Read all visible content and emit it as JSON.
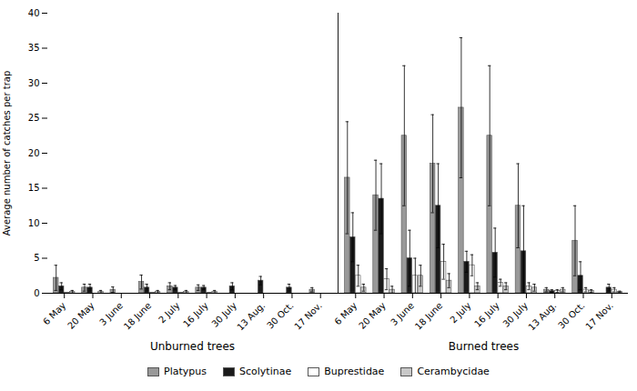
{
  "chart_data": {
    "type": "bar",
    "ylabel": "Average number of catches per trap",
    "ylim": [
      0,
      40
    ],
    "yticks": [
      0,
      5,
      10,
      15,
      20,
      25,
      30,
      35,
      40
    ],
    "sections": [
      {
        "label": "Unburned trees",
        "categories": [
          "6 May",
          "20 May",
          "3 June",
          "18 June",
          "2 July",
          "16 July",
          "30 July",
          "13 Aug.",
          "30 Oct.",
          "17 Nov."
        ],
        "series": [
          {
            "name": "Platypus",
            "color": "#999999",
            "values": [
              2.2,
              0.8,
              0.5,
              1.6,
              1.0,
              0.8,
              0.0,
              0.0,
              0.0,
              0.5
            ],
            "errors": [
              1.8,
              0.5,
              0.4,
              1.0,
              0.5,
              0.4,
              0.0,
              0.0,
              0.0,
              0.3
            ]
          },
          {
            "name": "Scolytinae",
            "color": "#1a1a1a",
            "values": [
              1.0,
              0.8,
              0.0,
              0.8,
              0.8,
              0.8,
              1.0,
              1.8,
              0.8,
              0.0
            ],
            "errors": [
              0.5,
              0.5,
              0.0,
              0.5,
              0.3,
              0.3,
              0.5,
              0.6,
              0.5,
              0.0
            ]
          },
          {
            "name": "Buprestidae",
            "color": "#ffffff",
            "values": [
              0.1,
              0.0,
              0.0,
              0.1,
              0.1,
              0.1,
              0.0,
              0.0,
              0.0,
              0.0
            ],
            "errors": [
              0.0,
              0.0,
              0.0,
              0.0,
              0.0,
              0.0,
              0.0,
              0.0,
              0.0,
              0.0
            ]
          },
          {
            "name": "Cerambycidae",
            "color": "#c8c8c8",
            "values": [
              0.2,
              0.2,
              0.0,
              0.2,
              0.2,
              0.2,
              0.0,
              0.0,
              0.0,
              0.0
            ],
            "errors": [
              0.2,
              0.2,
              0.0,
              0.2,
              0.2,
              0.2,
              0.0,
              0.0,
              0.0,
              0.0
            ]
          }
        ]
      },
      {
        "label": "Burned trees",
        "categories": [
          "6 May",
          "20 May",
          "3 June",
          "18 June",
          "2 July",
          "16 July",
          "30 July",
          "13 Aug.",
          "30 Oct.",
          "17 Nov."
        ],
        "series": [
          {
            "name": "Platypus",
            "color": "#999999",
            "values": [
              16.5,
              14.0,
              22.5,
              18.5,
              26.5,
              22.5,
              12.5,
              0.5,
              7.5,
              0.0
            ],
            "errors": [
              8.0,
              5.0,
              10.0,
              7.0,
              10.0,
              10.0,
              6.0,
              0.3,
              5.0,
              0.0
            ]
          },
          {
            "name": "Scolytinae",
            "color": "#1a1a1a",
            "values": [
              8.0,
              13.5,
              5.0,
              12.5,
              4.5,
              5.8,
              6.0,
              0.3,
              2.5,
              0.8
            ],
            "errors": [
              3.5,
              5.0,
              4.0,
              6.0,
              1.5,
              3.5,
              6.5,
              0.2,
              2.0,
              0.5
            ]
          },
          {
            "name": "Buprestidae",
            "color": "#ffffff",
            "values": [
              2.5,
              2.0,
              2.5,
              4.5,
              4.0,
              1.5,
              1.0,
              0.3,
              0.5,
              0.5
            ],
            "errors": [
              1.5,
              1.5,
              2.5,
              2.5,
              1.5,
              0.5,
              0.5,
              0.2,
              0.3,
              0.3
            ]
          },
          {
            "name": "Cerambycidae",
            "color": "#c8c8c8",
            "values": [
              0.8,
              0.5,
              2.5,
              1.8,
              1.0,
              1.0,
              0.8,
              0.5,
              0.3,
              0.2
            ],
            "errors": [
              0.5,
              0.5,
              1.5,
              1.0,
              0.5,
              0.5,
              0.5,
              0.3,
              0.2,
              0.1
            ]
          }
        ]
      }
    ]
  }
}
